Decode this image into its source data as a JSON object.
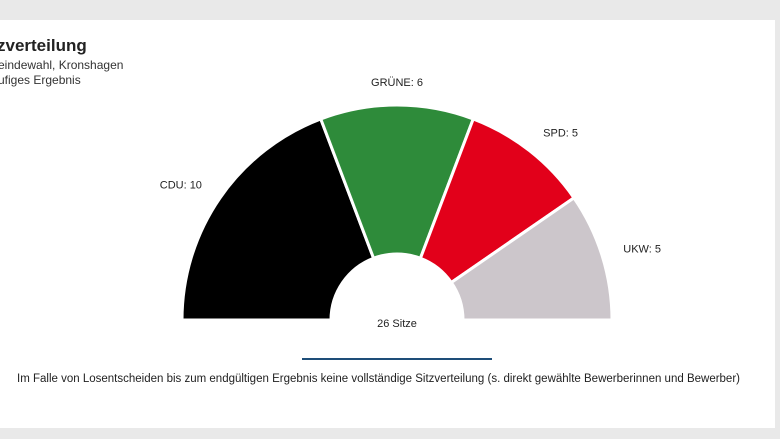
{
  "header": {
    "title": "zverteilung",
    "subtitle_line1": "eindewahl, Kronshagen",
    "subtitle_line2": "ufiges Ergebnis"
  },
  "chart_data": {
    "type": "pie",
    "subtype": "parliament-semicircle",
    "total_label": "26 Sitze",
    "parties": [
      {
        "name": "CDU",
        "seats": 10,
        "label": "CDU: 10",
        "color": "#000000"
      },
      {
        "name": "GRÜNE",
        "seats": 6,
        "label": "GRÜNE: 6",
        "color": "#2e8b3a"
      },
      {
        "name": "SPD",
        "seats": 5,
        "label": "SPD: 5",
        "color": "#e2001a"
      },
      {
        "name": "UKW",
        "seats": 5,
        "label": "UKW: 5",
        "color": "#ccc6cb"
      }
    ]
  },
  "footnote": "Im Falle von Losentscheiden bis zum endgültigen Ergebnis keine vollständige Sitzverteilung (s. direkt gewählte Bewerberinnen und Bewerber)"
}
